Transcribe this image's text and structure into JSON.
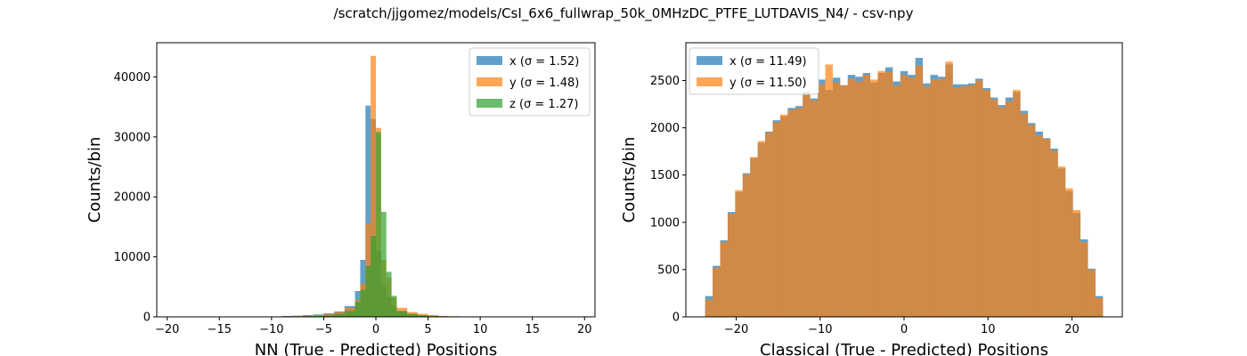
{
  "figure": {
    "suptitle": "/scratch/jjgomez/models/CsI_6x6_fullwrap_50k_0MHzDC_PTFE_LUTDAVIS_N4/ - csv-npy"
  },
  "colors": {
    "x": "#1f77b4",
    "y": "#ff7f0e",
    "z": "#2ca02c"
  },
  "chart_data": [
    {
      "type": "bar",
      "histogram": true,
      "xlabel": "NN (True - Predicted) Positions",
      "ylabel": "Counts/bin",
      "xlim": [
        -21,
        21
      ],
      "ylim": [
        0,
        45700
      ],
      "xticks": [
        -20,
        -15,
        -10,
        -5,
        0,
        5,
        10,
        15,
        20
      ],
      "yticks": [
        0,
        10000,
        20000,
        30000,
        40000
      ],
      "legend_position": "upper right",
      "series": [
        {
          "name": "x (σ = 1.52)",
          "color": "#1f77b4",
          "alpha": 0.7,
          "bins": [
            {
              "x0": -9.0,
              "x1": -8.0,
              "count": 150
            },
            {
              "x0": -8.0,
              "x1": -7.0,
              "count": 200
            },
            {
              "x0": -7.0,
              "x1": -6.0,
              "count": 300
            },
            {
              "x0": -6.0,
              "x1": -5.0,
              "count": 400
            },
            {
              "x0": -5.0,
              "x1": -4.0,
              "count": 600
            },
            {
              "x0": -4.0,
              "x1": -3.0,
              "count": 900
            },
            {
              "x0": -3.0,
              "x1": -2.0,
              "count": 1800
            },
            {
              "x0": -2.0,
              "x1": -1.5,
              "count": 4300
            },
            {
              "x0": -1.5,
              "x1": -1.0,
              "count": 9500
            },
            {
              "x0": -1.0,
              "x1": -0.5,
              "count": 35200
            },
            {
              "x0": -0.5,
              "x1": 0.0,
              "count": 33000
            },
            {
              "x0": 0.0,
              "x1": 0.5,
              "count": 11000
            },
            {
              "x0": 0.5,
              "x1": 1.0,
              "count": 5200
            },
            {
              "x0": 1.0,
              "x1": 1.5,
              "count": 3200
            },
            {
              "x0": 1.5,
              "x1": 2.0,
              "count": 1800
            },
            {
              "x0": 2.0,
              "x1": 3.0,
              "count": 900
            },
            {
              "x0": 3.0,
              "x1": 4.0,
              "count": 500
            },
            {
              "x0": 4.0,
              "x1": 5.0,
              "count": 300
            },
            {
              "x0": 5.0,
              "x1": 6.0,
              "count": 200
            },
            {
              "x0": 6.0,
              "x1": 7.0,
              "count": 120
            },
            {
              "x0": 7.0,
              "x1": 8.0,
              "count": 80
            }
          ]
        },
        {
          "name": "y (σ = 1.48)",
          "color": "#ff7f0e",
          "alpha": 0.7,
          "bins": [
            {
              "x0": -9.0,
              "x1": -8.0,
              "count": 100
            },
            {
              "x0": -8.0,
              "x1": -7.0,
              "count": 150
            },
            {
              "x0": -7.0,
              "x1": -6.0,
              "count": 200
            },
            {
              "x0": -6.0,
              "x1": -5.0,
              "count": 300
            },
            {
              "x0": -5.0,
              "x1": -4.0,
              "count": 500
            },
            {
              "x0": -4.0,
              "x1": -3.0,
              "count": 800
            },
            {
              "x0": -3.0,
              "x1": -2.0,
              "count": 1500
            },
            {
              "x0": -2.0,
              "x1": -1.5,
              "count": 2800
            },
            {
              "x0": -1.5,
              "x1": -1.0,
              "count": 5500
            },
            {
              "x0": -1.0,
              "x1": -0.5,
              "count": 15600
            },
            {
              "x0": -0.5,
              "x1": 0.0,
              "count": 43500
            },
            {
              "x0": 0.0,
              "x1": 0.5,
              "count": 31500
            },
            {
              "x0": 0.5,
              "x1": 1.0,
              "count": 9500
            },
            {
              "x0": 1.0,
              "x1": 1.5,
              "count": 6500
            },
            {
              "x0": 1.5,
              "x1": 2.0,
              "count": 3200
            },
            {
              "x0": 2.0,
              "x1": 3.0,
              "count": 1500
            },
            {
              "x0": 3.0,
              "x1": 4.0,
              "count": 800
            },
            {
              "x0": 4.0,
              "x1": 5.0,
              "count": 500
            },
            {
              "x0": 5.0,
              "x1": 6.0,
              "count": 300
            },
            {
              "x0": 6.0,
              "x1": 7.0,
              "count": 150
            },
            {
              "x0": 7.0,
              "x1": 8.0,
              "count": 100
            }
          ]
        },
        {
          "name": "z (σ = 1.27)",
          "color": "#2ca02c",
          "alpha": 0.7,
          "bins": [
            {
              "x0": -8.0,
              "x1": -7.0,
              "count": 50
            },
            {
              "x0": -7.0,
              "x1": -6.0,
              "count": 100
            },
            {
              "x0": -6.0,
              "x1": -5.0,
              "count": 150
            },
            {
              "x0": -5.0,
              "x1": -4.0,
              "count": 250
            },
            {
              "x0": -4.0,
              "x1": -3.0,
              "count": 500
            },
            {
              "x0": -3.0,
              "x1": -2.0,
              "count": 1000
            },
            {
              "x0": -2.0,
              "x1": -1.5,
              "count": 2500
            },
            {
              "x0": -1.5,
              "x1": -1.0,
              "count": 4500
            },
            {
              "x0": -1.0,
              "x1": -0.5,
              "count": 8500
            },
            {
              "x0": -0.5,
              "x1": 0.0,
              "count": 13500
            },
            {
              "x0": 0.0,
              "x1": 0.5,
              "count": 30800
            },
            {
              "x0": 0.5,
              "x1": 1.0,
              "count": 17500
            },
            {
              "x0": 1.0,
              "x1": 1.5,
              "count": 7500
            },
            {
              "x0": 1.5,
              "x1": 2.0,
              "count": 3500
            },
            {
              "x0": 2.0,
              "x1": 3.0,
              "count": 1000
            },
            {
              "x0": 3.0,
              "x1": 4.0,
              "count": 500
            },
            {
              "x0": 4.0,
              "x1": 5.0,
              "count": 250
            },
            {
              "x0": 5.0,
              "x1": 6.0,
              "count": 120
            },
            {
              "x0": 6.0,
              "x1": 7.0,
              "count": 60
            }
          ]
        }
      ]
    },
    {
      "type": "bar",
      "histogram": true,
      "xlabel": "Classical (True - Predicted) Positions",
      "ylabel": "Counts/bin",
      "xlim": [
        -26,
        26
      ],
      "ylim": [
        0,
        2900
      ],
      "xticks": [
        -20,
        -10,
        0,
        10,
        20
      ],
      "yticks": [
        0,
        500,
        1000,
        1500,
        2000,
        2500
      ],
      "legend_position": "upper left",
      "bin_edges_range": [
        -23.7,
        23.7
      ],
      "series": [
        {
          "name": "x (σ = 11.49)",
          "color": "#1f77b4",
          "alpha": 0.7,
          "values": [
            220,
            540,
            810,
            1110,
            1320,
            1520,
            1680,
            1840,
            1960,
            2080,
            2120,
            2210,
            2230,
            2380,
            2310,
            2510,
            2400,
            2530,
            2450,
            2560,
            2540,
            2580,
            2480,
            2580,
            2640,
            2490,
            2600,
            2560,
            2740,
            2470,
            2560,
            2540,
            2670,
            2460,
            2460,
            2470,
            2520,
            2420,
            2320,
            2240,
            2320,
            2380,
            2180,
            2050,
            1960,
            1890,
            1780,
            1570,
            1330,
            1100,
            820,
            510,
            220
          ]
        },
        {
          "name": "y (σ = 11.50)",
          "color": "#ff7f0e",
          "alpha": 0.7,
          "values": [
            180,
            520,
            790,
            1090,
            1340,
            1510,
            1690,
            1860,
            1950,
            2060,
            2140,
            2190,
            2210,
            2360,
            2290,
            2460,
            2670,
            2480,
            2450,
            2520,
            2490,
            2560,
            2510,
            2600,
            2590,
            2450,
            2560,
            2530,
            2660,
            2440,
            2510,
            2520,
            2700,
            2420,
            2440,
            2450,
            2500,
            2400,
            2300,
            2220,
            2280,
            2400,
            2150,
            2030,
            1920,
            1880,
            1760,
            1590,
            1360,
            1130,
            790,
            500,
            200
          ]
        }
      ]
    }
  ]
}
